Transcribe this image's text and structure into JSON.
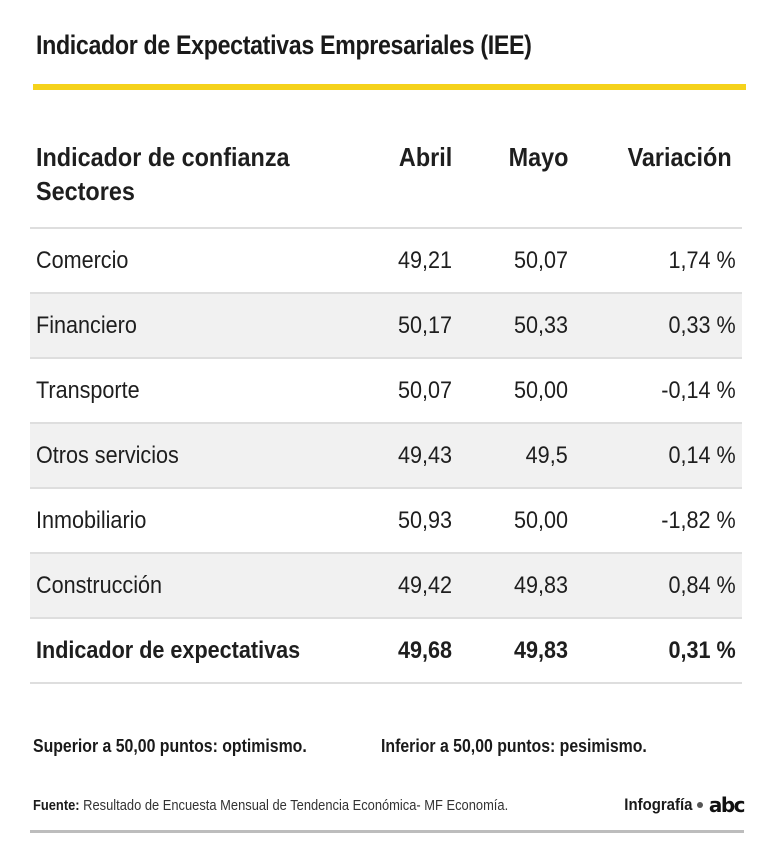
{
  "chart_data": {
    "type": "table",
    "title": "Indicador de Expectativas Empresariales (IEE)",
    "header": {
      "sector_line1": "Indicador de confianza",
      "sector_line2": "Sectores",
      "abril": "Abril",
      "mayo": "Mayo",
      "variacion": "Variación"
    },
    "rows": [
      {
        "sector": "Comercio",
        "abril": "49,21",
        "mayo": "50,07",
        "variacion": "1,74 %"
      },
      {
        "sector": "Financiero",
        "abril": "50,17",
        "mayo": "50,33",
        "variacion": "0,33 %"
      },
      {
        "sector": "Transporte",
        "abril": "50,07",
        "mayo": "50,00",
        "variacion": "-0,14 %"
      },
      {
        "sector": "Otros servicios",
        "abril": "49,43",
        "mayo": "49,5",
        "variacion": "0,14 %"
      },
      {
        "sector": "Inmobiliario",
        "abril": "50,93",
        "mayo": "50,00",
        "variacion": "-1,82 %"
      },
      {
        "sector": "Construcción",
        "abril": "49,42",
        "mayo": "49,83",
        "variacion": "0,84 %"
      }
    ],
    "total": {
      "sector": "Indicador de expectativas",
      "abril": "49,68",
      "mayo": "49,83",
      "variacion": "0,31 %"
    }
  },
  "notes": {
    "optimismo": "Superior a 50,00 puntos: optimismo.",
    "pesimismo": "Inferior a 50,00 puntos: pesimismo."
  },
  "source": {
    "label": "Fuente:",
    "text": " Resultado de Encuesta Mensual de Tendencia Económica- MF Economía."
  },
  "credit": {
    "label": "Infografía",
    "logo": "abc"
  },
  "colors": {
    "accent": "#f5d21b",
    "row_alt": "#f1f1f1",
    "divider": "#dedede"
  }
}
